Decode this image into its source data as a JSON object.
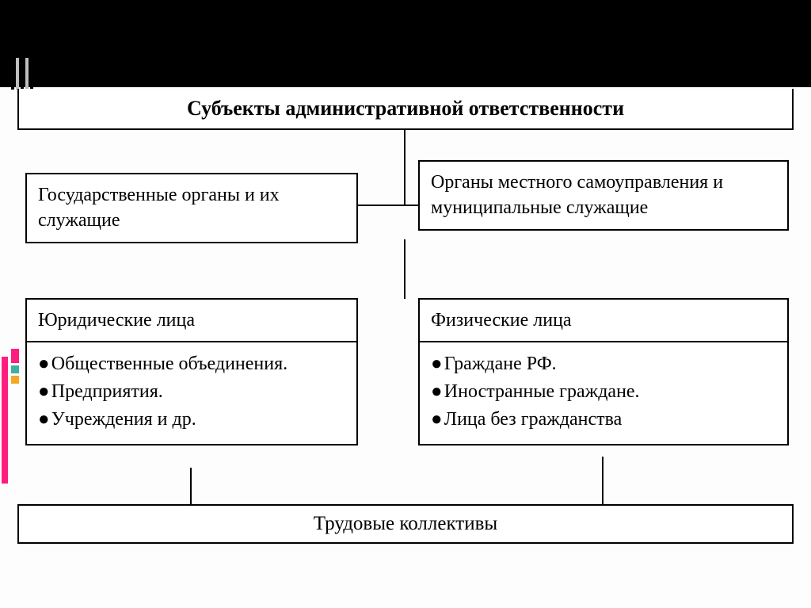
{
  "colors": {
    "border": "#000000",
    "background": "#ffffff",
    "accent_pink": "#ff1e7f",
    "accent_teal": "#3eb0a1",
    "accent_orange": "#f5a623",
    "top_bar": "#000000"
  },
  "typography": {
    "family": "Georgia, Times New Roman, serif",
    "title_size_pt": 20,
    "title_weight": "bold",
    "body_size_pt": 18
  },
  "diagram": {
    "type": "tree",
    "title": "Субъекты административной ответственности",
    "nodes": {
      "gov": {
        "label": "Государственные органы и их служащие"
      },
      "local": {
        "label": "Органы местного самоуправления и муниципальные служащие"
      },
      "legal": {
        "label": "Юридические лица",
        "items": [
          "Общественные объединения.",
          "Предприятия.",
          "Учреждения и др."
        ]
      },
      "physical": {
        "label": "Физические лица",
        "items": [
          "Граждане РФ.",
          "Иностранные граждане.",
          "Лица без гражданства"
        ]
      },
      "bottom": {
        "label": "Трудовые коллективы"
      }
    }
  }
}
